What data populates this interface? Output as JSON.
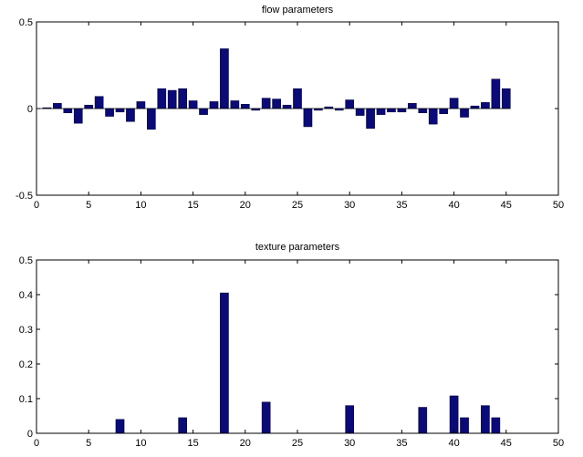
{
  "chart_data": [
    {
      "type": "bar",
      "title": "flow parameters",
      "xlabel": "",
      "ylabel": "",
      "xlim": [
        0,
        50
      ],
      "ylim": [
        -0.5,
        0.5
      ],
      "x_ticks": [
        "0",
        "5",
        "10",
        "15",
        "20",
        "25",
        "30",
        "35",
        "40",
        "45",
        "50"
      ],
      "y_ticks": [
        "-0.5",
        "0",
        "0.5"
      ],
      "grid": false,
      "bar_color": "#0a0a78",
      "x": [
        1,
        2,
        3,
        4,
        5,
        6,
        7,
        8,
        9,
        10,
        11,
        12,
        13,
        14,
        15,
        16,
        17,
        18,
        19,
        20,
        21,
        22,
        23,
        24,
        25,
        26,
        27,
        28,
        29,
        30,
        31,
        32,
        33,
        34,
        35,
        36,
        37,
        38,
        39,
        40,
        41,
        42,
        43,
        44,
        45
      ],
      "values": [
        0.005,
        0.03,
        -0.025,
        -0.085,
        0.02,
        0.07,
        -0.045,
        -0.02,
        -0.075,
        0.04,
        -0.12,
        0.115,
        0.105,
        0.115,
        0.045,
        -0.035,
        0.04,
        0.345,
        0.045,
        0.025,
        -0.01,
        0.06,
        0.055,
        0.02,
        0.115,
        -0.105,
        -0.01,
        0.01,
        -0.01,
        0.05,
        -0.04,
        -0.115,
        -0.035,
        -0.02,
        -0.02,
        0.03,
        -0.025,
        -0.09,
        -0.03,
        0.06,
        -0.05,
        0.015,
        0.035,
        0.17,
        0.115
      ]
    },
    {
      "type": "bar",
      "title": "texture parameters",
      "xlabel": "",
      "ylabel": "",
      "xlim": [
        0,
        50
      ],
      "ylim": [
        0,
        0.5
      ],
      "x_ticks": [
        "0",
        "5",
        "10",
        "15",
        "20",
        "25",
        "30",
        "35",
        "40",
        "45",
        "50"
      ],
      "y_ticks": [
        "0",
        "0.1",
        "0.2",
        "0.3",
        "0.4",
        "0.5"
      ],
      "grid": false,
      "bar_color": "#0a0a78",
      "x": [
        8,
        14,
        18,
        22,
        30,
        37,
        40,
        41,
        43,
        44
      ],
      "values": [
        0.04,
        0.045,
        0.405,
        0.09,
        0.08,
        0.075,
        0.108,
        0.045,
        0.08,
        0.045
      ]
    }
  ]
}
